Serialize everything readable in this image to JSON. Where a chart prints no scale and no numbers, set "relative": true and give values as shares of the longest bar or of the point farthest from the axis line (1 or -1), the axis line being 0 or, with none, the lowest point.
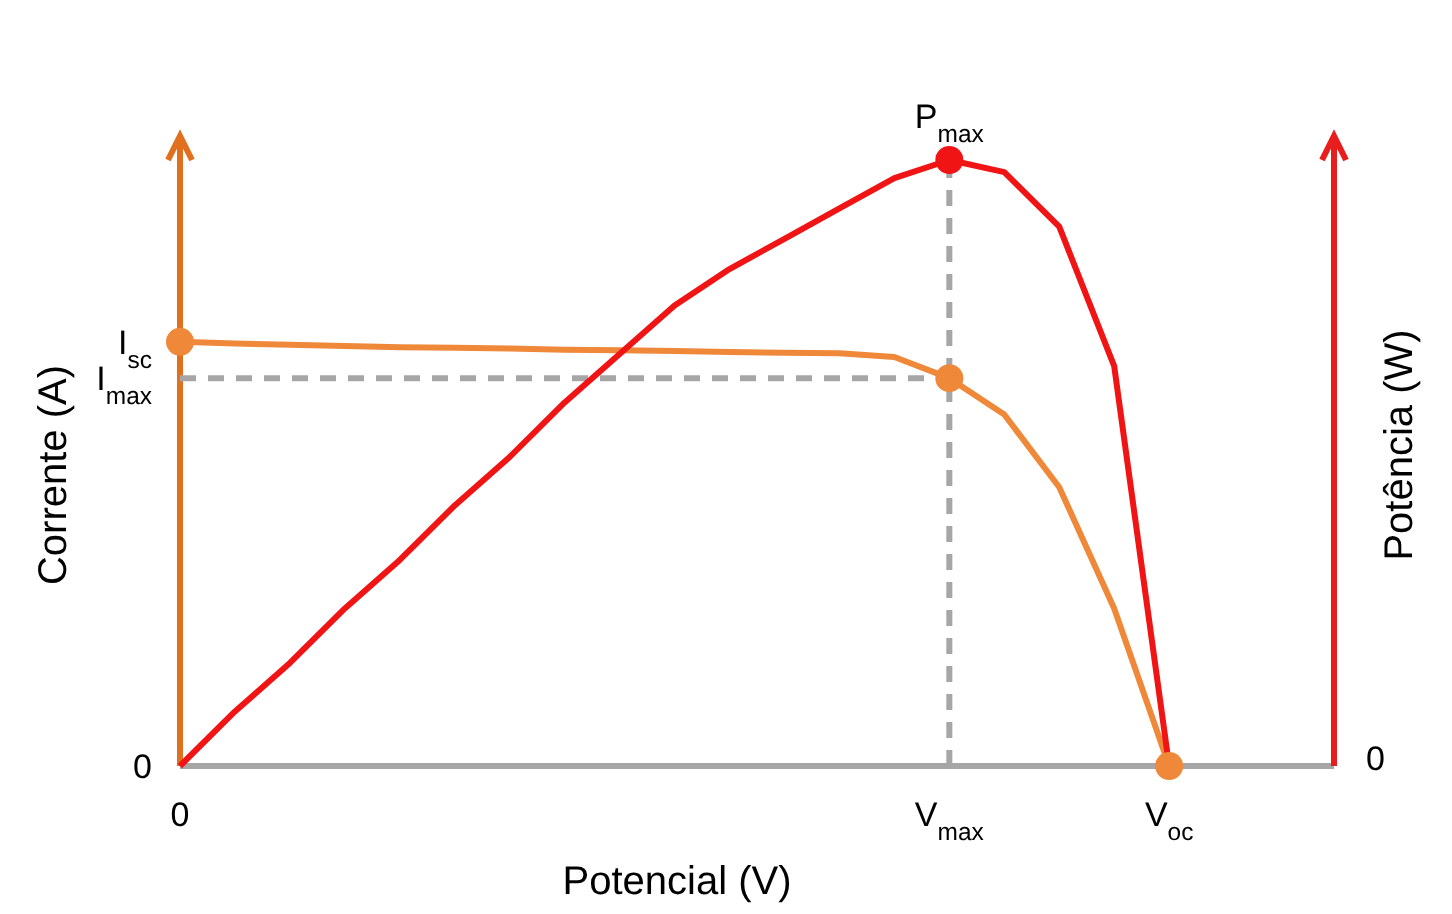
{
  "chart_data": {
    "type": "line",
    "relative": true,
    "xlabel": "Potencial (V)",
    "ylabel": "Corrente (A)",
    "y2label": "Potência (W)",
    "categories": [
      "0",
      null,
      null,
      null,
      null,
      null,
      null,
      null,
      null,
      null,
      null,
      null,
      null,
      null,
      "V$_{max}$",
      null,
      null,
      null,
      "V$_{oc}$",
      null,
      null,
      null
    ],
    "annotations": [
      "0",
      "0",
      "I$_{sc}$",
      "I$_{max}$",
      "P$_{max}$"
    ],
    "ref_lines": [
      {
        "axis": "y",
        "value": 0.64,
        "color": "#a6a6a6",
        "line_style": "dashed"
      },
      {
        "axis": "x",
        "value": "V$_{max}$",
        "color": "#a6a6a6",
        "line_style": "dashed"
      }
    ],
    "series": [
      {
        "color": "#f0883a",
        "values": [
          0.7,
          0.697,
          0.695,
          0.693,
          0.691,
          0.69,
          0.689,
          0.687,
          0.686,
          0.685,
          0.683,
          0.682,
          0.681,
          0.675,
          0.64,
          0.58,
          0.46,
          0.26,
          0,
          null,
          null,
          null
        ]
      },
      {
        "color": "#f01414",
        "values": [
          0,
          0.09,
          0.17,
          0.26,
          0.34,
          0.43,
          0.51,
          0.6,
          0.68,
          0.76,
          0.82,
          0.87,
          0.92,
          0.97,
          1,
          0.98,
          0.89,
          0.66,
          0,
          null,
          null,
          null
        ]
      },
      {
        "type": "scatter",
        "marker": "circle",
        "color": "#f0883a",
        "values": [
          0.7,
          null,
          null,
          null,
          null,
          null,
          null,
          null,
          null,
          null,
          null,
          null,
          null,
          null,
          0.64,
          null,
          null,
          null,
          0,
          null,
          null,
          null
        ]
      },
      {
        "type": "scatter",
        "marker": "circle",
        "color": "#f01414",
        "values": [
          null,
          null,
          null,
          null,
          null,
          null,
          null,
          null,
          null,
          null,
          null,
          null,
          null,
          null,
          1,
          null,
          null,
          null,
          null,
          null,
          null,
          null
        ]
      }
    ]
  }
}
